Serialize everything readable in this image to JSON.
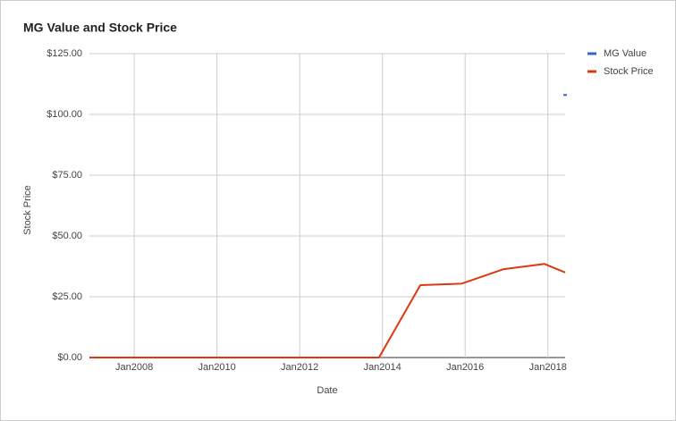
{
  "chart_data": {
    "type": "line",
    "title": "MG Value and Stock Price",
    "x_label": "Date",
    "y_label": "Stock Price",
    "x": [
      "2006-12",
      "2007-12",
      "2008-12",
      "2009-12",
      "2010-12",
      "2011-12",
      "2012-12",
      "2013-12",
      "2014-12",
      "2015-12",
      "2016-12",
      "2017-12",
      "2018-06"
    ],
    "series": [
      {
        "name": "MG Value",
        "color": "#3366cc",
        "values": [
          null,
          null,
          null,
          null,
          null,
          null,
          null,
          null,
          null,
          null,
          null,
          null,
          108
        ]
      },
      {
        "name": "Stock Price",
        "color": "#dc3912",
        "values": [
          0,
          0,
          0,
          0,
          0,
          0,
          0,
          0,
          29.8,
          30.4,
          36.3,
          38.5,
          35
        ]
      }
    ],
    "xlim": [
      "2006-12",
      "2018-06"
    ],
    "xticks": [
      {
        "value": "2008-01",
        "label": "Jan2008"
      },
      {
        "value": "2010-01",
        "label": "Jan2010"
      },
      {
        "value": "2012-01",
        "label": "Jan2012"
      },
      {
        "value": "2014-01",
        "label": "Jan2014"
      },
      {
        "value": "2016-01",
        "label": "Jan2016"
      },
      {
        "value": "2018-01",
        "label": "Jan2018"
      }
    ],
    "ylim": [
      0,
      125
    ],
    "yticks": [
      {
        "value": 0,
        "label": "$0.00"
      },
      {
        "value": 25,
        "label": "$25.00"
      },
      {
        "value": 50,
        "label": "$50.00"
      },
      {
        "value": 75,
        "label": "$75.00"
      },
      {
        "value": 100,
        "label": "$100.00"
      },
      {
        "value": 125,
        "label": "$125.00"
      }
    ],
    "grid": true,
    "legend": "right"
  }
}
